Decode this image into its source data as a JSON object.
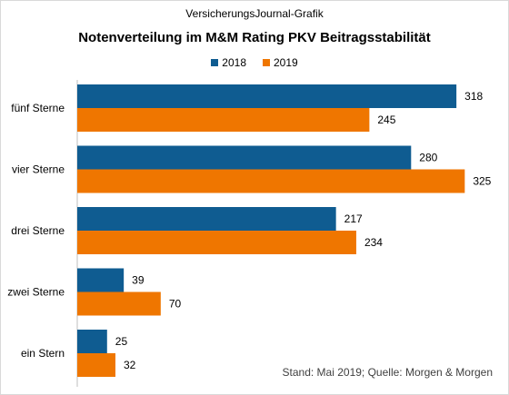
{
  "header": {
    "source": "VersicherungsJournal-Grafik",
    "title": "Notenverteilung im M&M Rating PKV Beitragsstabilität"
  },
  "footer": {
    "note": "Stand: Mai 2019;  Quelle: Morgen & Morgen"
  },
  "legend": [
    {
      "label": "2018",
      "color": "#0f5c91"
    },
    {
      "label": "2019",
      "color": "#ef7600"
    }
  ],
  "chart_data": {
    "type": "bar",
    "orientation": "horizontal",
    "title": "Notenverteilung im M&M Rating PKV Beitragsstabilität",
    "categories": [
      "fünf Sterne",
      "vier Sterne",
      "drei Sterne",
      "zwei Sterne",
      "ein Stern"
    ],
    "series": [
      {
        "name": "2018",
        "color": "#0f5c91",
        "values": [
          318,
          280,
          217,
          39,
          25
        ]
      },
      {
        "name": "2019",
        "color": "#ef7600",
        "values": [
          245,
          325,
          234,
          70,
          32
        ]
      }
    ],
    "xlim": [
      0,
      340
    ],
    "grid": false,
    "legend_position": "top"
  }
}
